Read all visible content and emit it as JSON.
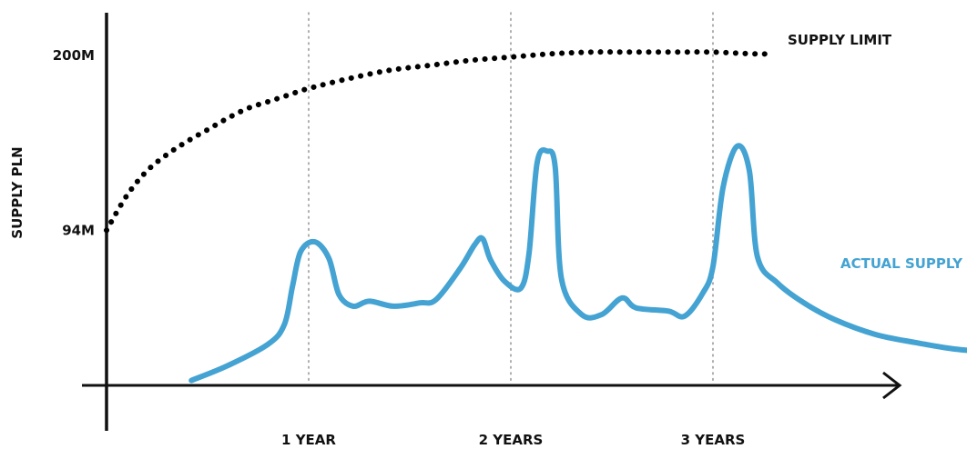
{
  "chart_data": {
    "type": "line",
    "title": "",
    "xlabel": "",
    "ylabel": "SUPPLY PLN",
    "x_ticks": [
      {
        "label": "1 YEAR",
        "value": 1
      },
      {
        "label": "2 YEARS",
        "value": 2
      },
      {
        "label": "3 YEARS",
        "value": 3
      }
    ],
    "y_ticks": [
      {
        "label": "94M",
        "value": 94
      },
      {
        "label": "200M",
        "value": 200
      }
    ],
    "xlim": [
      0,
      4
    ],
    "ylim": [
      0,
      210
    ],
    "grid": "vertical dotted lines at year ticks",
    "colors": {
      "supply_limit": "#000000",
      "actual_supply": "#44a3d2",
      "axis": "#111111",
      "grid": "#9a9a9a"
    },
    "series": [
      {
        "name": "SUPPLY LIMIT",
        "style": "dotted",
        "points": [
          [
            0.0,
            94
          ],
          [
            0.1,
            115
          ],
          [
            0.2,
            130
          ],
          [
            0.3,
            140
          ],
          [
            0.4,
            148
          ],
          [
            0.5,
            155
          ],
          [
            0.6,
            162
          ],
          [
            0.7,
            168
          ],
          [
            0.8,
            172
          ],
          [
            0.9,
            176
          ],
          [
            1.0,
            180
          ],
          [
            1.2,
            186
          ],
          [
            1.4,
            191
          ],
          [
            1.6,
            194
          ],
          [
            1.8,
            197
          ],
          [
            2.0,
            199
          ],
          [
            2.2,
            201
          ],
          [
            2.4,
            202
          ],
          [
            2.6,
            202
          ],
          [
            2.8,
            202
          ],
          [
            3.0,
            202
          ],
          [
            3.2,
            201
          ],
          [
            3.3,
            201
          ]
        ]
      },
      {
        "name": "ACTUAL SUPPLY",
        "style": "solid",
        "points": [
          [
            0.42,
            3
          ],
          [
            0.6,
            12
          ],
          [
            0.8,
            25
          ],
          [
            0.88,
            37
          ],
          [
            0.92,
            60
          ],
          [
            0.96,
            81
          ],
          [
            1.03,
            87
          ],
          [
            1.1,
            77
          ],
          [
            1.15,
            55
          ],
          [
            1.22,
            48
          ],
          [
            1.3,
            51
          ],
          [
            1.42,
            48
          ],
          [
            1.55,
            50
          ],
          [
            1.63,
            52
          ],
          [
            1.75,
            71
          ],
          [
            1.82,
            85
          ],
          [
            1.86,
            89
          ],
          [
            1.9,
            76
          ],
          [
            1.97,
            63
          ],
          [
            2.05,
            59
          ],
          [
            2.09,
            80
          ],
          [
            2.13,
            135
          ],
          [
            2.18,
            142
          ],
          [
            2.22,
            132
          ],
          [
            2.25,
            65
          ],
          [
            2.35,
            43
          ],
          [
            2.45,
            43
          ],
          [
            2.55,
            53
          ],
          [
            2.62,
            47
          ],
          [
            2.78,
            45
          ],
          [
            2.86,
            42
          ],
          [
            2.95,
            56
          ],
          [
            3.0,
            72
          ],
          [
            3.05,
            120
          ],
          [
            3.12,
            145
          ],
          [
            3.18,
            130
          ],
          [
            3.22,
            78
          ],
          [
            3.32,
            62
          ],
          [
            3.45,
            50
          ],
          [
            3.6,
            40
          ],
          [
            3.8,
            31
          ],
          [
            4.0,
            26
          ],
          [
            4.2,
            22
          ],
          [
            4.4,
            20
          ]
        ]
      }
    ]
  }
}
